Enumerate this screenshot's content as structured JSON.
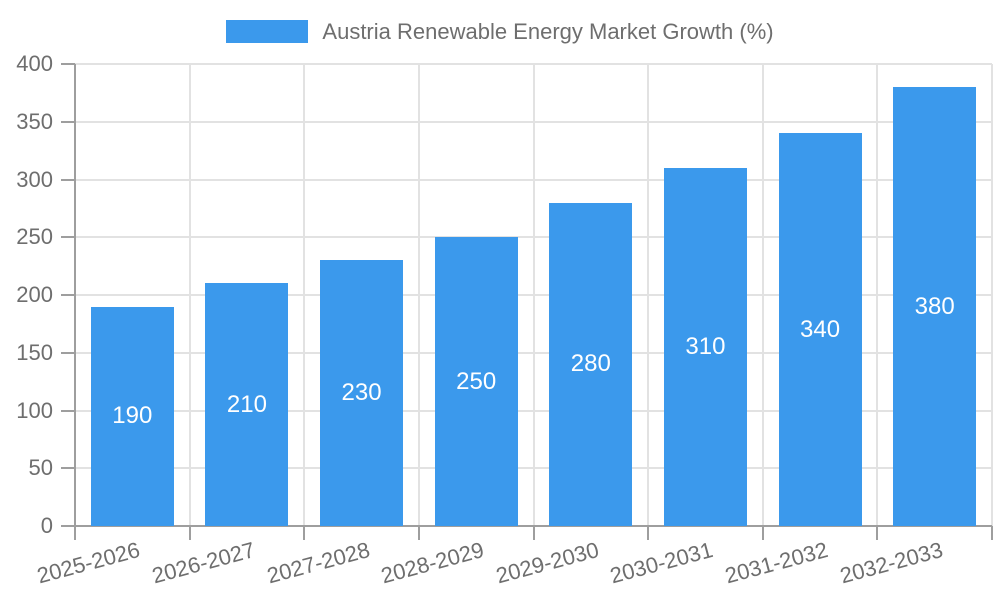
{
  "chart_data": {
    "type": "bar",
    "title": "",
    "legend_label": "Austria Renewable Energy Market Growth (%)",
    "legend_position": "top-center",
    "categories": [
      "2025-2026",
      "2026-2027",
      "2027-2028",
      "2028-2029",
      "2029-2030",
      "2030-2031",
      "2031-2032",
      "2032-2033"
    ],
    "values": [
      190,
      210,
      230,
      250,
      280,
      310,
      340,
      380
    ],
    "xlabel": "",
    "ylabel": "",
    "ylim": [
      0,
      400
    ],
    "yticks": [
      0,
      50,
      100,
      150,
      200,
      250,
      300,
      350,
      400
    ],
    "grid": true,
    "x_label_rotation_deg": -15,
    "colors": {
      "bar": "#3b99ec",
      "bar_label": "#ffffff",
      "axis_text": "#6e6e6e",
      "grid_line": "#e2e2e2",
      "axis_line": "#9e9e9e",
      "background": "#ffffff"
    }
  }
}
